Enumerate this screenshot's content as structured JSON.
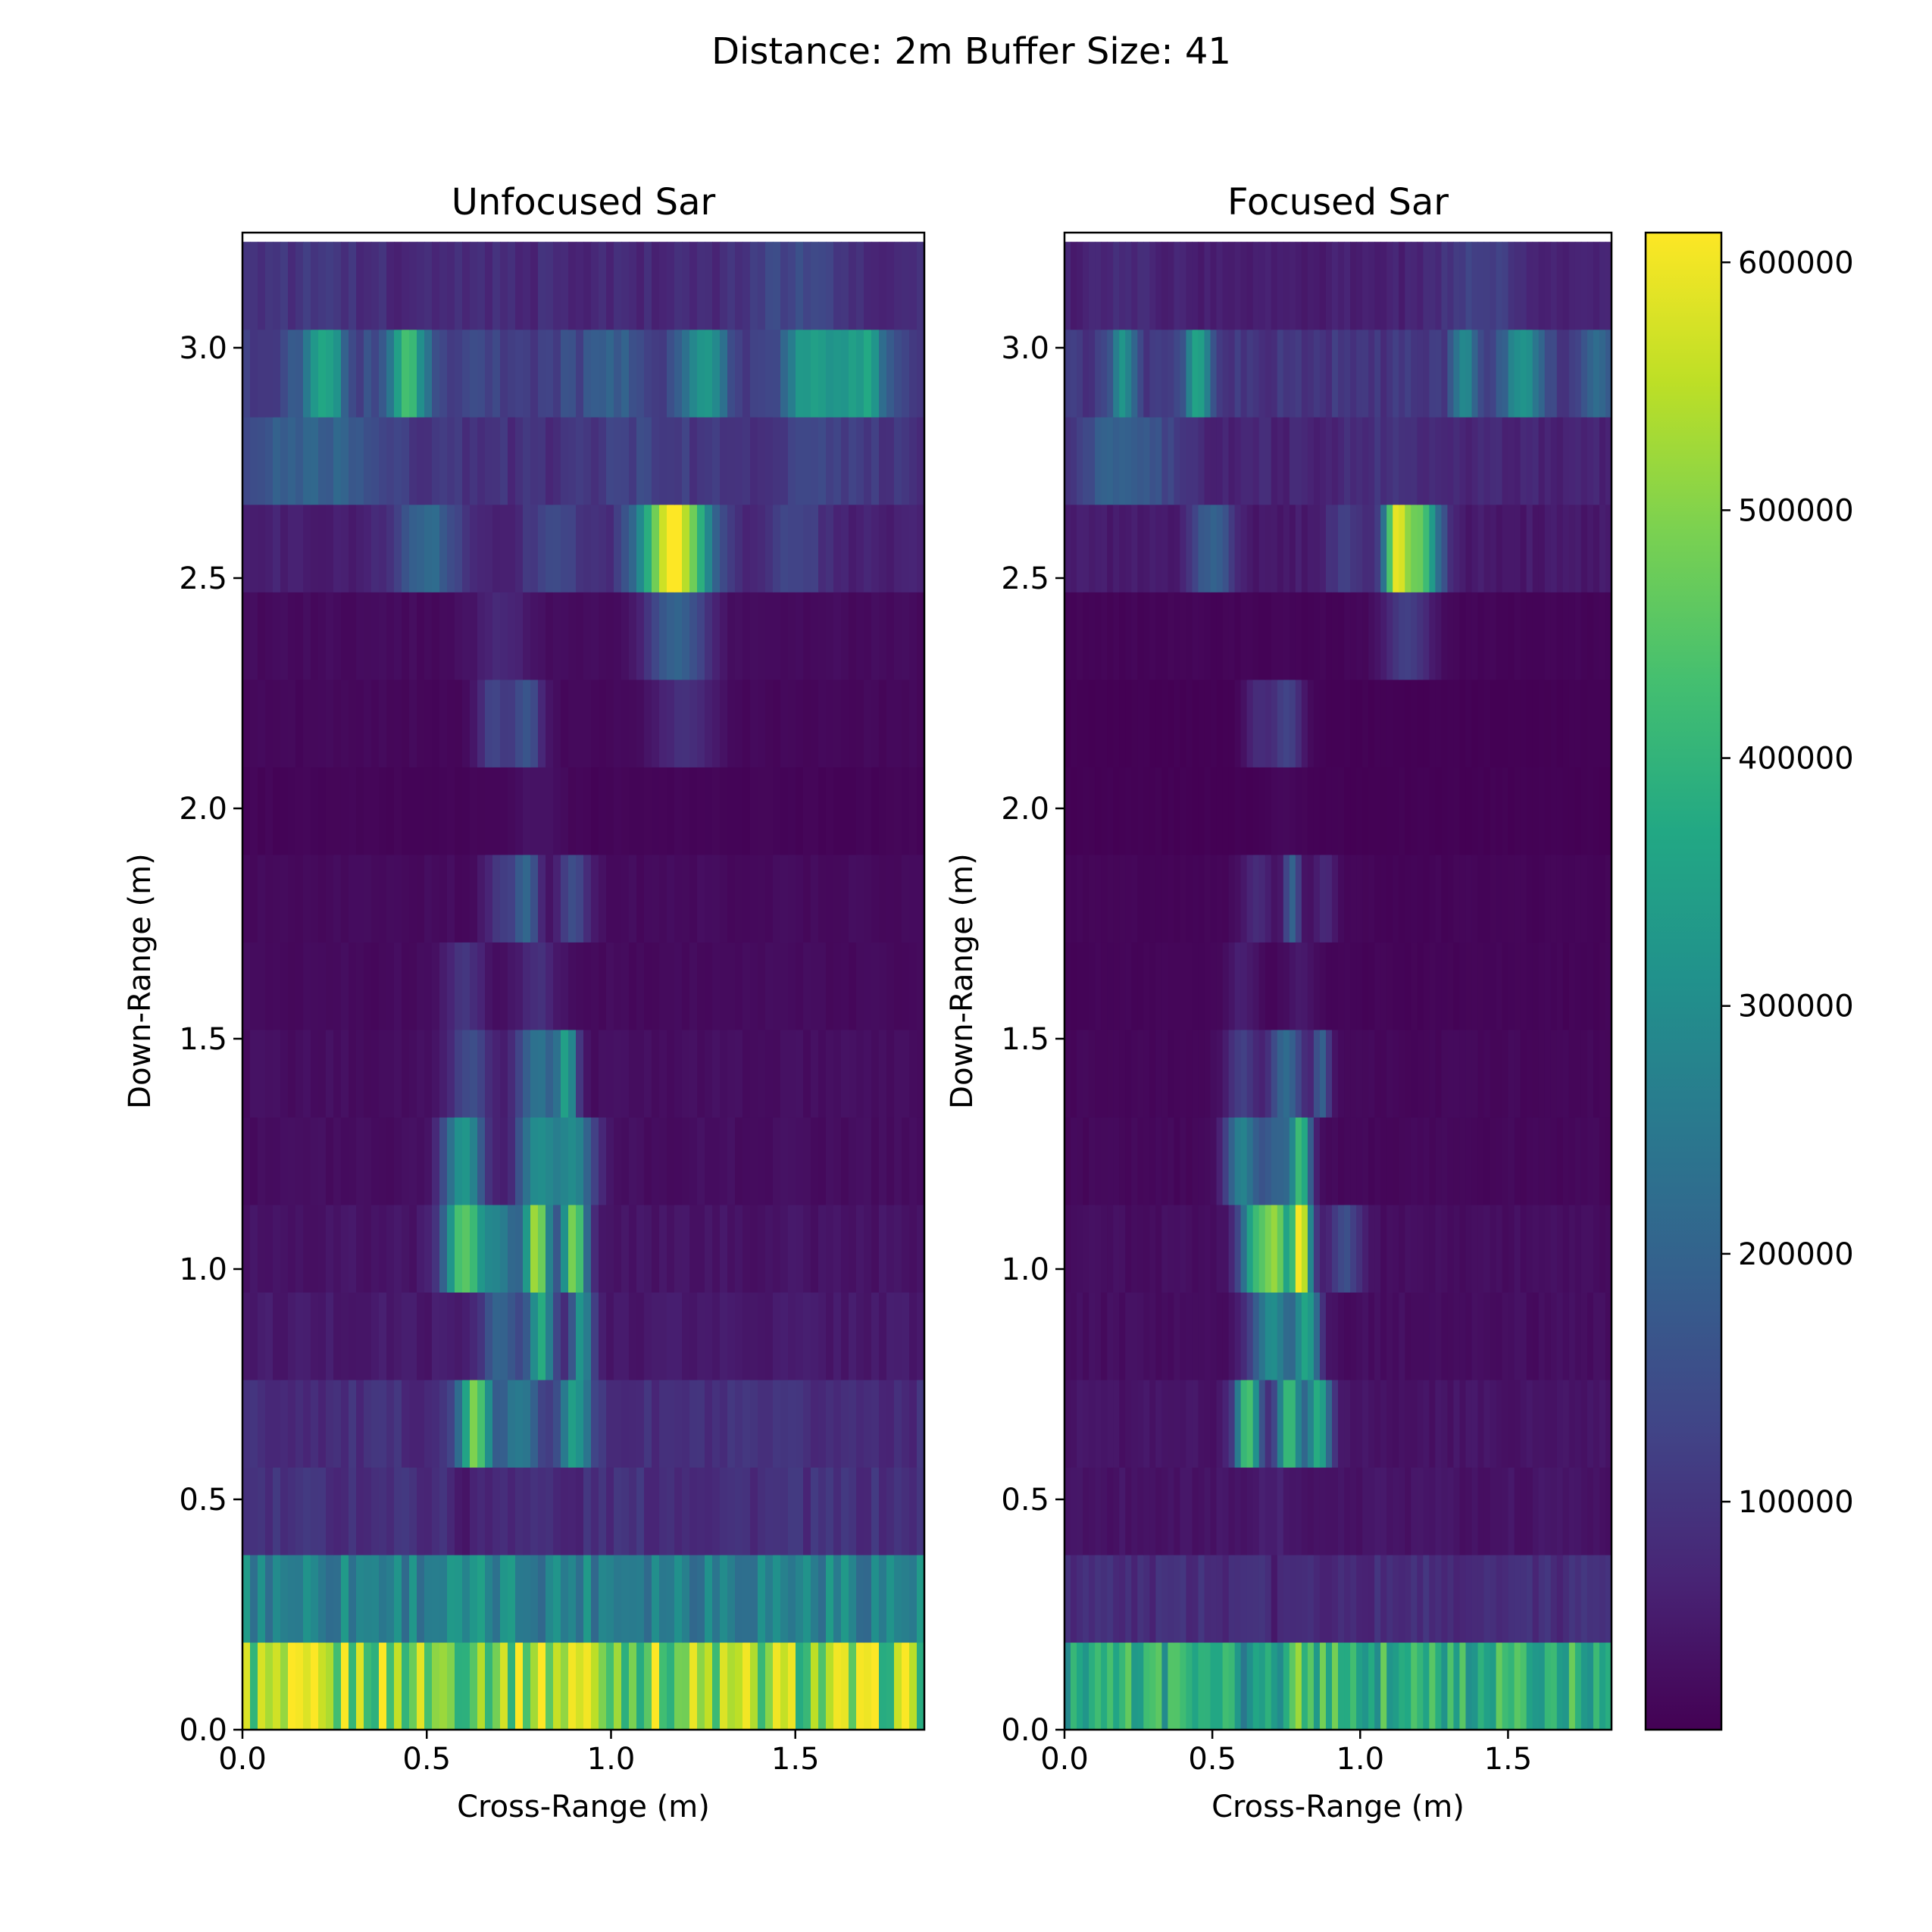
{
  "figure": {
    "suptitle": "Distance: 2m Buffer Size: 41"
  },
  "chart_data": [
    {
      "type": "heatmap",
      "title": "Unfocused Sar",
      "xlabel": "Cross-Range (m)",
      "ylabel": "Down-Range (m)",
      "xlim": [
        0,
        1.85
      ],
      "ylim": [
        0,
        3.25
      ],
      "xticks": [
        "0.0",
        "0.5",
        "1.0",
        "1.5"
      ],
      "yticks": [
        "0.0",
        "0.5",
        "1.0",
        "1.5",
        "2.0",
        "2.5",
        "3.0"
      ],
      "row_height_m": 0.19,
      "rows": [
        {
          "y0": 0.0,
          "base": 500000,
          "peaks": [
            [
              0.8,
              580000,
              0.03
            ],
            [
              0.9,
              590000,
              0.03
            ],
            [
              0.68,
              520000,
              0.03
            ]
          ]
        },
        {
          "y0": 0.19,
          "base": 280000,
          "peaks": []
        },
        {
          "y0": 0.38,
          "base": 90000,
          "peaks": [
            [
              0.62,
              55000,
              0.04
            ],
            [
              0.88,
              60000,
              0.03
            ]
          ]
        },
        {
          "y0": 0.57,
          "base": 85000,
          "peaks": [
            [
              0.63,
              480000,
              0.03
            ],
            [
              0.9,
              360000,
              0.03
            ],
            [
              0.75,
              250000,
              0.04
            ]
          ]
        },
        {
          "y0": 0.76,
          "base": 50000,
          "peaks": [
            [
              0.81,
              370000,
              0.025
            ],
            [
              0.92,
              330000,
              0.02
            ],
            [
              0.7,
              200000,
              0.04
            ]
          ]
        },
        {
          "y0": 0.95,
          "base": 40000,
          "peaks": [
            [
              0.6,
              450000,
              0.04
            ],
            [
              0.8,
              530000,
              0.025
            ],
            [
              0.9,
              500000,
              0.025
            ],
            [
              0.7,
              250000,
              0.04
            ]
          ]
        },
        {
          "y0": 1.14,
          "base": 30000,
          "peaks": [
            [
              0.6,
              330000,
              0.04
            ],
            [
              0.8,
              300000,
              0.04
            ],
            [
              0.9,
              280000,
              0.04
            ]
          ]
        },
        {
          "y0": 1.33,
          "base": 30000,
          "peaks": [
            [
              0.8,
              240000,
              0.04
            ],
            [
              0.88,
              330000,
              0.02
            ],
            [
              0.62,
              150000,
              0.04
            ]
          ]
        },
        {
          "y0": 1.52,
          "base": 25000,
          "peaks": [
            [
              0.6,
              100000,
              0.04
            ],
            [
              0.8,
              90000,
              0.04
            ]
          ]
        },
        {
          "y0": 1.71,
          "base": 25000,
          "peaks": [
            [
              0.77,
              200000,
              0.025
            ],
            [
              0.9,
              150000,
              0.03
            ],
            [
              0.7,
              110000,
              0.03
            ]
          ]
        },
        {
          "y0": 1.9,
          "base": 15000,
          "peaks": [
            [
              0.8,
              40000,
              0.05
            ]
          ]
        },
        {
          "y0": 2.09,
          "base": 20000,
          "peaks": [
            [
              0.77,
              170000,
              0.03
            ],
            [
              0.68,
              130000,
              0.03
            ],
            [
              1.2,
              90000,
              0.06
            ]
          ]
        },
        {
          "y0": 2.28,
          "base": 25000,
          "peaks": [
            [
              1.18,
              200000,
              0.06
            ],
            [
              0.7,
              80000,
              0.05
            ]
          ]
        },
        {
          "y0": 2.47,
          "base": 60000,
          "peaks": [
            [
              1.17,
              610000,
              0.07
            ],
            [
              0.5,
              220000,
              0.06
            ],
            [
              0.85,
              150000,
              0.06
            ],
            [
              1.5,
              130000,
              0.06
            ]
          ]
        },
        {
          "y0": 2.66,
          "base": 90000,
          "peaks": [
            [
              0.2,
              200000,
              0.15
            ],
            [
              1.1,
              130000,
              0.1
            ],
            [
              1.6,
              130000,
              0.1
            ]
          ]
        },
        {
          "y0": 2.85,
          "base": 130000,
          "peaks": [
            [
              0.22,
              380000,
              0.04
            ],
            [
              0.45,
              420000,
              0.04
            ],
            [
              1.25,
              320000,
              0.04
            ],
            [
              1.55,
              360000,
              0.05
            ],
            [
              1.68,
              350000,
              0.05
            ],
            [
              1.0,
              200000,
              0.04
            ]
          ]
        },
        {
          "y0": 3.04,
          "base": 80000,
          "peaks": [
            [
              1.5,
              140000,
              0.1
            ],
            [
              0.2,
              100000,
              0.1
            ]
          ]
        }
      ]
    },
    {
      "type": "heatmap",
      "title": "Focused Sar",
      "xlabel": "Cross-Range (m)",
      "ylabel": "Down-Range (m)",
      "xlim": [
        0,
        1.85
      ],
      "ylim": [
        0,
        3.25
      ],
      "xticks": [
        "0.0",
        "0.5",
        "1.0",
        "1.5"
      ],
      "yticks": [
        "0.0",
        "0.5",
        "1.0",
        "1.5",
        "2.0",
        "2.5",
        "3.0"
      ],
      "row_height_m": 0.19,
      "rows": [
        {
          "y0": 0.0,
          "base": 380000,
          "peaks": [
            [
              0.78,
              450000,
              0.03
            ],
            [
              0.9,
              420000,
              0.03
            ],
            [
              0.65,
              300000,
              0.04
            ]
          ]
        },
        {
          "y0": 0.19,
          "base": 85000,
          "peaks": [
            [
              0.72,
              60000,
              0.03
            ]
          ]
        },
        {
          "y0": 0.38,
          "base": 40000,
          "peaks": [
            [
              0.7,
              60000,
              0.06
            ]
          ]
        },
        {
          "y0": 0.57,
          "base": 40000,
          "peaks": [
            [
              0.62,
              450000,
              0.03
            ],
            [
              0.76,
              420000,
              0.03
            ],
            [
              0.86,
              380000,
              0.03
            ]
          ]
        },
        {
          "y0": 0.76,
          "base": 30000,
          "peaks": [
            [
              0.7,
              300000,
              0.05
            ],
            [
              0.82,
              350000,
              0.03
            ]
          ]
        },
        {
          "y0": 0.95,
          "base": 30000,
          "peaks": [
            [
              0.8,
              610000,
              0.025
            ],
            [
              0.65,
              400000,
              0.04
            ],
            [
              0.72,
              420000,
              0.03
            ],
            [
              0.95,
              150000,
              0.04
            ]
          ]
        },
        {
          "y0": 1.14,
          "base": 20000,
          "peaks": [
            [
              0.6,
              280000,
              0.04
            ],
            [
              0.8,
              400000,
              0.025
            ],
            [
              0.72,
              200000,
              0.04
            ]
          ]
        },
        {
          "y0": 1.33,
          "base": 20000,
          "peaks": [
            [
              0.75,
              220000,
              0.04
            ],
            [
              0.87,
              200000,
              0.02
            ],
            [
              0.6,
              120000,
              0.04
            ]
          ]
        },
        {
          "y0": 1.52,
          "base": 15000,
          "peaks": [
            [
              0.6,
              60000,
              0.04
            ],
            [
              0.8,
              50000,
              0.04
            ]
          ]
        },
        {
          "y0": 1.71,
          "base": 15000,
          "peaks": [
            [
              0.77,
              200000,
              0.02
            ],
            [
              0.65,
              80000,
              0.04
            ],
            [
              0.88,
              80000,
              0.03
            ]
          ]
        },
        {
          "y0": 1.9,
          "base": 10000,
          "peaks": [
            [
              0.75,
              20000,
              0.05
            ]
          ]
        },
        {
          "y0": 2.09,
          "base": 10000,
          "peaks": [
            [
              0.75,
              130000,
              0.04
            ],
            [
              0.65,
              80000,
              0.03
            ]
          ]
        },
        {
          "y0": 2.28,
          "base": 15000,
          "peaks": [
            [
              1.16,
              120000,
              0.06
            ]
          ]
        },
        {
          "y0": 2.47,
          "base": 50000,
          "peaks": [
            [
              1.12,
              470000,
              0.03
            ],
            [
              1.2,
              460000,
              0.05
            ],
            [
              0.5,
              200000,
              0.05
            ],
            [
              0.95,
              120000,
              0.05
            ]
          ]
        },
        {
          "y0": 2.66,
          "base": 70000,
          "peaks": [
            [
              0.2,
              200000,
              0.12
            ],
            [
              1.1,
              100000,
              0.1
            ]
          ]
        },
        {
          "y0": 2.85,
          "base": 100000,
          "peaks": [
            [
              0.2,
              320000,
              0.03
            ],
            [
              0.45,
              380000,
              0.03
            ],
            [
              1.35,
              300000,
              0.03
            ],
            [
              1.55,
              330000,
              0.05
            ],
            [
              1.8,
              220000,
              0.04
            ]
          ]
        },
        {
          "y0": 3.04,
          "base": 60000,
          "peaks": [
            [
              1.4,
              130000,
              0.1
            ],
            [
              0.2,
              80000,
              0.1
            ]
          ]
        }
      ]
    }
  ],
  "colorbar": {
    "colormap": "viridis",
    "min": 8000,
    "max": 612000,
    "tick_values": [
      100000,
      200000,
      300000,
      400000,
      500000,
      600000
    ],
    "tick_labels": [
      "100000",
      "200000",
      "300000",
      "400000",
      "500000",
      "600000"
    ]
  }
}
